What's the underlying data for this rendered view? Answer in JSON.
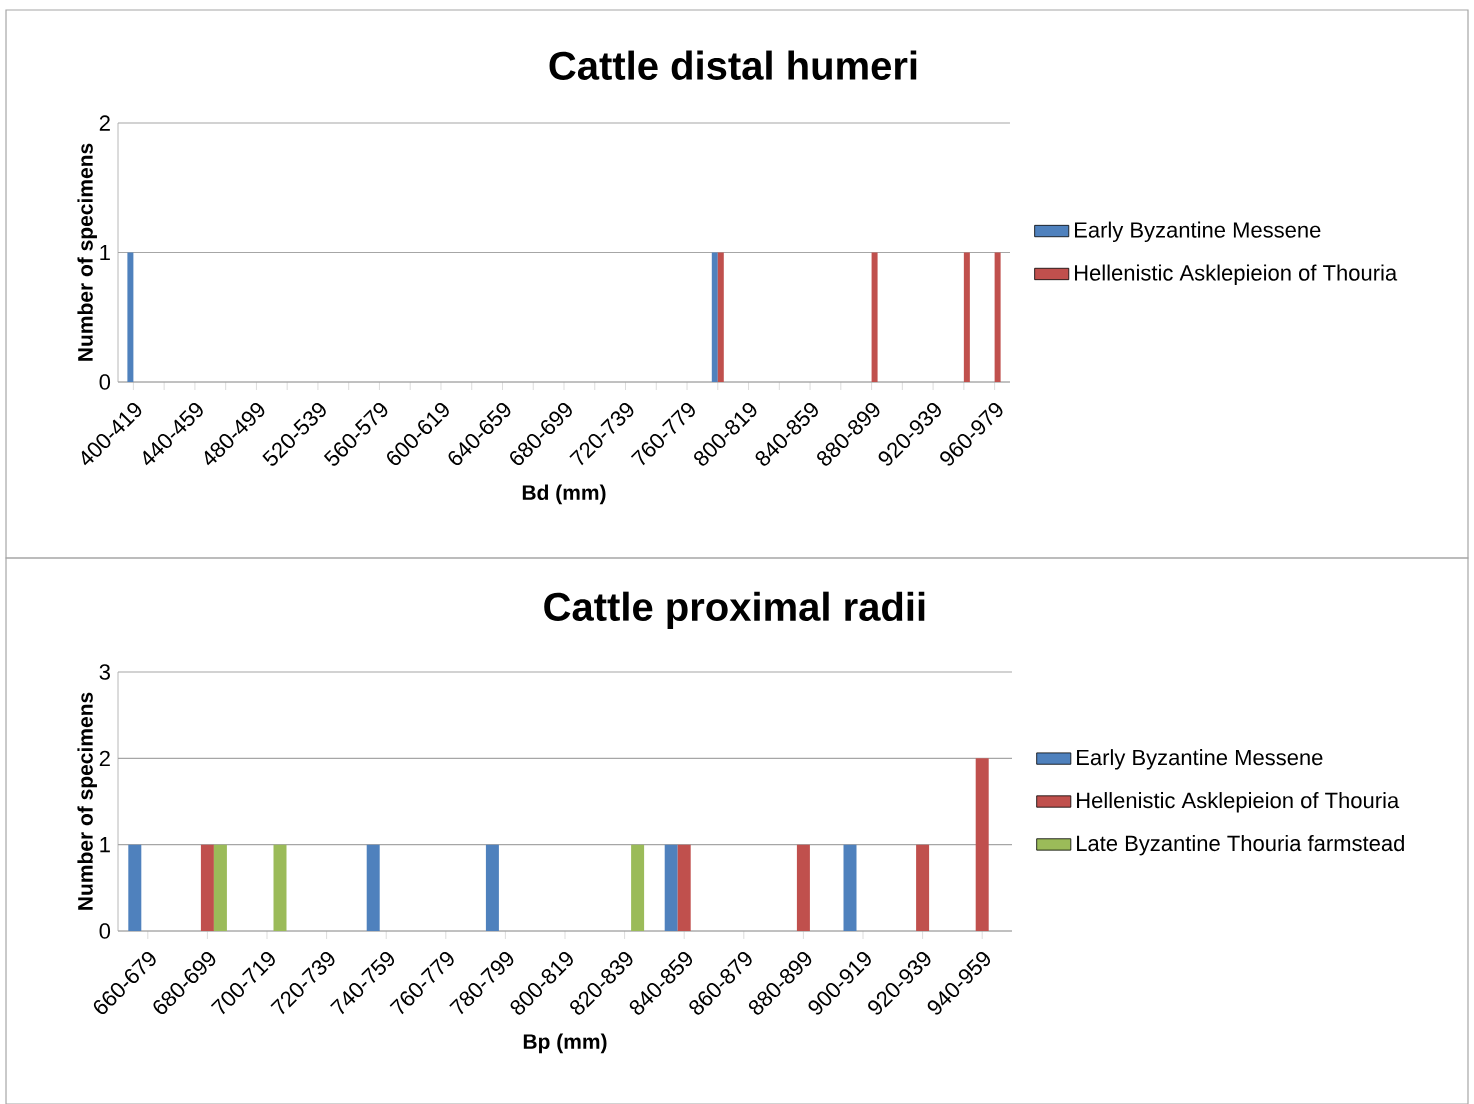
{
  "chart_data": [
    {
      "type": "bar",
      "title": "Cattle distal humeri",
      "xlabel": "Bd (mm)",
      "ylabel": "Number of specimens",
      "categories": [
        "400-419",
        null,
        "440-459",
        null,
        "480-499",
        null,
        "520-539",
        null,
        "560-579",
        null,
        "600-619",
        null,
        "640-659",
        null,
        "680-699",
        null,
        "720-739",
        null,
        "760-779",
        null,
        "800-819",
        null,
        "840-859",
        null,
        "880-899",
        null,
        "920-939",
        null,
        "960-979"
      ],
      "series": [
        {
          "name": "Early Byzantine Messene",
          "color": "#4f81bd",
          "values": [
            1,
            0,
            0,
            0,
            0,
            0,
            0,
            0,
            0,
            0,
            0,
            0,
            0,
            0,
            0,
            0,
            0,
            0,
            0,
            1,
            0,
            0,
            0,
            0,
            0,
            0,
            0,
            0,
            0
          ]
        },
        {
          "name": "Hellenistic Asklepieion of Thouria",
          "color": "#c0504d",
          "values": [
            0,
            0,
            0,
            0,
            0,
            0,
            0,
            0,
            0,
            0,
            0,
            0,
            0,
            0,
            0,
            0,
            0,
            0,
            0,
            1,
            0,
            0,
            0,
            0,
            1,
            0,
            0,
            1,
            1
          ]
        }
      ],
      "ylim": [
        0,
        2
      ],
      "yticks": [
        0,
        1,
        2
      ],
      "grid": "y",
      "legend": "right"
    },
    {
      "type": "bar",
      "title": "Cattle proximal radii",
      "xlabel": "Bp (mm)",
      "ylabel": "Number of specimens",
      "categories": [
        "660-679",
        "680-699",
        "700-719",
        "720-739",
        "740-759",
        "760-779",
        "780-799",
        "800-819",
        "820-839",
        "840-859",
        "860-879",
        "880-899",
        "900-919",
        "920-939",
        "940-959"
      ],
      "series": [
        {
          "name": "Early Byzantine Messene",
          "color": "#4f81bd",
          "values": [
            1,
            0,
            0,
            0,
            1,
            0,
            1,
            0,
            0,
            1,
            0,
            0,
            1,
            0,
            0
          ]
        },
        {
          "name": "Hellenistic Asklepieion of Thouria",
          "color": "#c0504d",
          "values": [
            0,
            1,
            0,
            0,
            0,
            0,
            0,
            0,
            0,
            1,
            0,
            1,
            0,
            1,
            2
          ]
        },
        {
          "name": "Late Byzantine Thouria farmstead",
          "color": "#9bbb59",
          "values": [
            0,
            1,
            1,
            0,
            0,
            0,
            0,
            0,
            1,
            0,
            0,
            0,
            0,
            0,
            0
          ]
        }
      ],
      "ylim": [
        0,
        3
      ],
      "yticks": [
        0,
        1,
        2,
        3
      ],
      "grid": "y",
      "legend": "right"
    }
  ]
}
